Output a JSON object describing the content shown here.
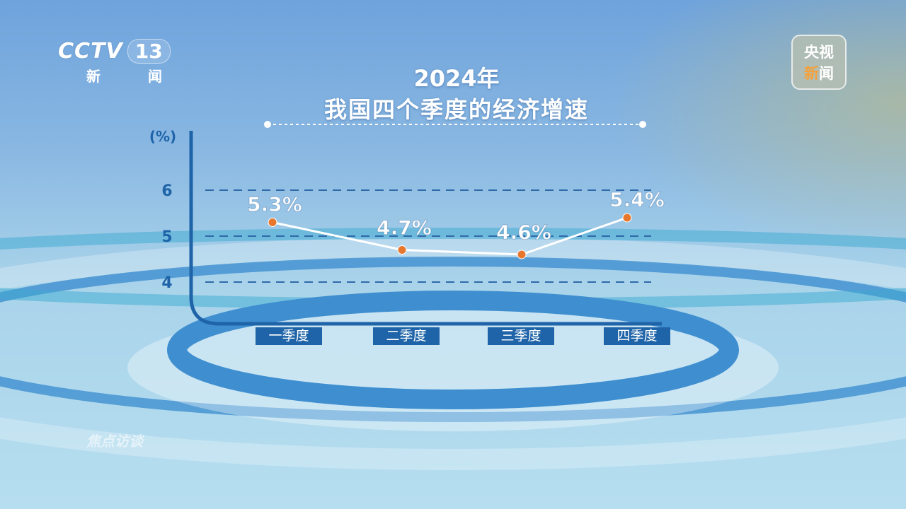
{
  "branding": {
    "channel_logo": "CCTV",
    "channel_number": "13",
    "channel_name": "新 闻",
    "corner_badge_line1": "央视",
    "corner_badge_line2_part1": "新",
    "corner_badge_line2_part2": "闻",
    "watermark": "焦点访谈"
  },
  "chart_data": {
    "type": "line",
    "title": "2024年",
    "subtitle": "我国四个季度的经济增速",
    "ylabel": "(%)",
    "yticks": [
      "4",
      "5",
      "6"
    ],
    "ylim": [
      3.5,
      6.5
    ],
    "grid": true,
    "categories": [
      "一季度",
      "二季度",
      "三季度",
      "四季度"
    ],
    "values": [
      5.3,
      4.7,
      4.6,
      5.4
    ],
    "data_labels": [
      "5.3%",
      "4.7%",
      "4.6%",
      "5.4%"
    ],
    "colors": {
      "line": "#ffffff",
      "marker": "#e8772e",
      "axis": "#1f64a8",
      "grid": "#2f6aa8"
    }
  }
}
